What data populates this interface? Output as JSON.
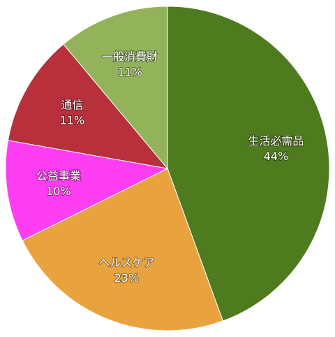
{
  "chart_data": {
    "type": "pie",
    "categories": [
      "生活必需品",
      "ヘルスケア",
      "公益事業",
      "通信",
      "一般消費財"
    ],
    "values": [
      44,
      23,
      10,
      11,
      11
    ],
    "value_labels": [
      "44%",
      "23%",
      "10%",
      "11%",
      "11%"
    ],
    "colors": [
      "#4e7b1d",
      "#e8a33f",
      "#ff3df2",
      "#b7303b",
      "#93b35b"
    ]
  }
}
